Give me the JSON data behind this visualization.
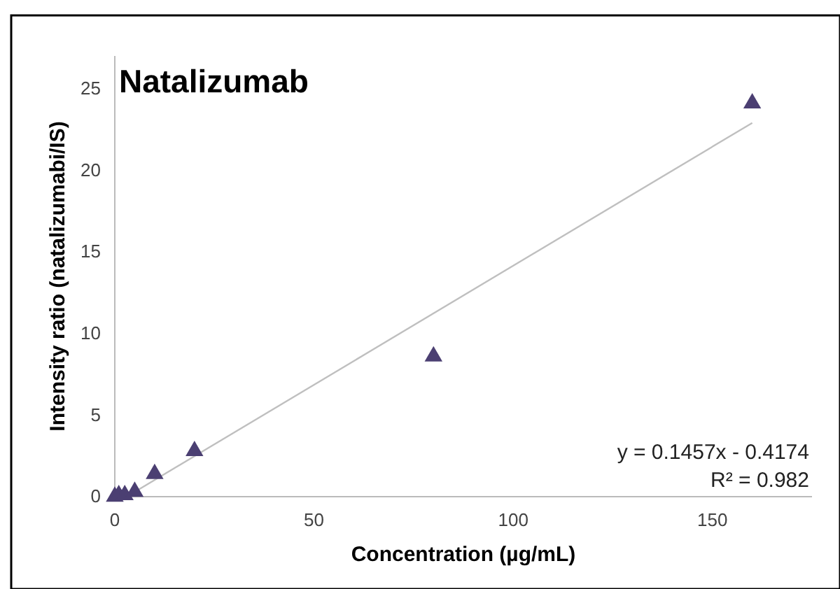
{
  "chart_data": {
    "type": "scatter",
    "title": "Natalizumab",
    "xlabel": "Concentration (µg/mL)",
    "ylabel": "Intensity ratio (natalizumabi/IS)",
    "xlim": [
      0,
      175
    ],
    "xticks": [
      0,
      50,
      100,
      150
    ],
    "ylim": [
      0,
      27
    ],
    "yticks": [
      0,
      5,
      10,
      15,
      20,
      25
    ],
    "grid": false,
    "marker": "triangle",
    "series": [
      {
        "color": "#4b3f72",
        "x": [
          0,
          1,
          2.5,
          5,
          10,
          20,
          80,
          160
        ],
        "values": [
          0,
          0.1,
          0.1,
          0.3,
          1.4,
          2.8,
          8.6,
          24.1
        ]
      },
      {
        "type": "line",
        "color": "#bfbfbf",
        "line_style": "solid",
        "marker": "none",
        "x": [
          3,
          160
        ],
        "values": [
          0,
          22.9
        ]
      }
    ],
    "annotations": [
      "y = 0.1457x - 0.4174",
      "R² = 0.982"
    ]
  }
}
